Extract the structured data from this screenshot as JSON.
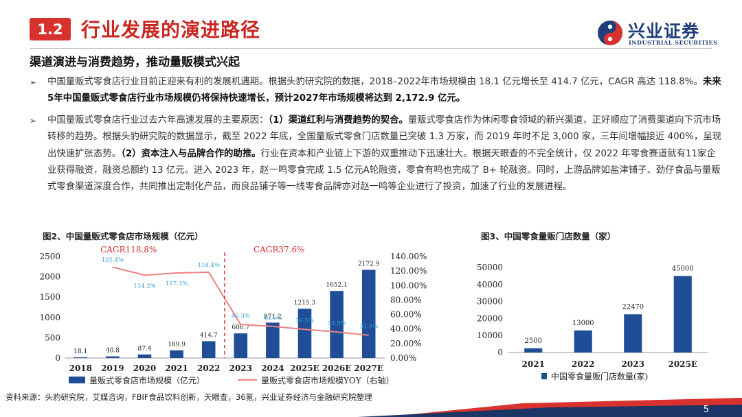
{
  "header": {
    "section_number": "1.2",
    "title": "行业发展的演进路径",
    "logo_cn": "兴业证券",
    "logo_en": "INDUSTRIAL SECURITIES"
  },
  "subtitle": "渠道演进与消费趋势，推动量贩模式兴起",
  "paragraphs": [
    {
      "bullet": "➢",
      "lead": "中国量贩式零食店行业目前正迎来有利的发展机遇期。根据头豹研究院的数据，2018–2022年市场规模由 18.1 亿元增长至 414.7 亿元，CAGR 高达 118.8%。",
      "bold": "未来5年中国量贩式零食店行业市场规模仍将保持快速增长，预计2027年市场规模将达到 2,172.9 亿元。"
    },
    {
      "bullet": "➢",
      "t1": "中国量贩式零食店行业过去六年高速发展的主要原因：",
      "b1": "（1）渠道红利与消费趋势的契合。",
      "t2": "量贩式零食店作为休闲零食领域的新兴渠道，正好顺应了消费渠道向下沉市场转移的趋势。根据头豹研究院的数据显示，截至 2022 年底，全国量贩式零食门店数量已突破 1.3 万家，而 2019 年时不足 3,000 家，三年间增幅接近 400%，呈现出快速扩张态势。",
      "b2": "（2）资本注入与品牌合作的助推。",
      "t3": "行业在资本和产业链上下游的双重推动下迅速壮大。根据天眼查的不完全统计，仅 2022 年零食赛道就有11家企业获得融资，融资总额约 13 亿元。进入 2023 年，赵一鸣零食完成 1.5 亿元A轮融资，零食有鸣也完成了 B+ 轮融资。同时，上游品牌如盐津铺子、劲仔食品与量贩式零食渠道深度合作，共同推出定制化产品，而良品铺子等一线零食品牌亦对赵一鸣等企业进行了投资，加速了行业的发展进程。"
    }
  ],
  "figure2": {
    "title": "图2、中国量贩式零食店市场规模（亿元）",
    "annotations": [
      "CAGR118.8%",
      "CAGR37.6%"
    ],
    "legend_bar": "量贩式零食店市场规模（亿元）",
    "legend_line": "量贩式零食店市场规模YOY（右轴）",
    "y_ticks": [
      "0",
      "500",
      "1000",
      "1500",
      "2000",
      "2500"
    ],
    "y2_ticks": [
      "0.00%",
      "20.00%",
      "40.00%",
      "60.00%",
      "80.00%",
      "100.00%",
      "120.00%",
      "140.00%"
    ]
  },
  "figure3": {
    "title": "图3、中国零食量贩门店数量（家）",
    "legend": "中国零食量贩门店数量(家)",
    "y_ticks": [
      "0",
      "10000",
      "20000",
      "30000",
      "40000",
      "50000"
    ]
  },
  "chart_data": [
    {
      "type": "bar",
      "title": "图2、中国量贩式零食店市场规模（亿元）",
      "categories": [
        "2018",
        "2019",
        "2020",
        "2021",
        "2022",
        "2023",
        "2024",
        "2025E",
        "2026E",
        "2027E"
      ],
      "series": [
        {
          "name": "量贩式零食店市场规模（亿元）",
          "type": "bar",
          "values": [
            18.1,
            40.8,
            87.4,
            189.9,
            414.7,
            606.7,
            871.2,
            1215.3,
            1652.1,
            2172.9
          ],
          "labels": [
            "18.1",
            "40.8",
            "87.4",
            "189.9",
            "414.7",
            "606.7",
            "871.2",
            "1215.3",
            "1652.1",
            "2172.9"
          ],
          "color": "#1f4e96"
        },
        {
          "name": "量贩式零食店市场规模YOY（右轴）",
          "type": "line",
          "axis": "right",
          "values": [
            null,
            125.4,
            114.2,
            117.3,
            118.4,
            46.3,
            43.6,
            39.5,
            35.9,
            31.5
          ],
          "labels": [
            "",
            "125.4%",
            "114.2%",
            "117.3%",
            "118.4%",
            "46.3%",
            "43.6%",
            "39.5%",
            "35.9%",
            "31.5%"
          ],
          "color": "#f08080"
        }
      ],
      "ylim": [
        0,
        2500
      ],
      "y2lim": [
        0,
        140
      ],
      "legend_position": "bottom"
    },
    {
      "type": "bar",
      "title": "图3、中国零食量贩门店数量（家）",
      "categories": [
        "2021",
        "2022",
        "2023",
        "2025E"
      ],
      "series": [
        {
          "name": "中国零食量贩门店数量(家)",
          "values": [
            2500,
            13000,
            22470,
            45000
          ],
          "labels": [
            "2500",
            "13000",
            "22470",
            "45000"
          ],
          "color": "#1f4e96"
        }
      ],
      "ylim": [
        0,
        50000
      ],
      "legend_position": "bottom"
    }
  ],
  "source": "资料来源：头豹研究院，艾媒咨询，FBIF食品饮料创新，天眼查，36氪，兴业证券经济与金融研究院整理",
  "page_number": "5",
  "colors": {
    "accent_red": "#c8261f",
    "badge_red": "#d7322d",
    "bar_blue": "#1f4e96",
    "line_pink": "#f08080",
    "footer_navy": "#1a3566"
  }
}
